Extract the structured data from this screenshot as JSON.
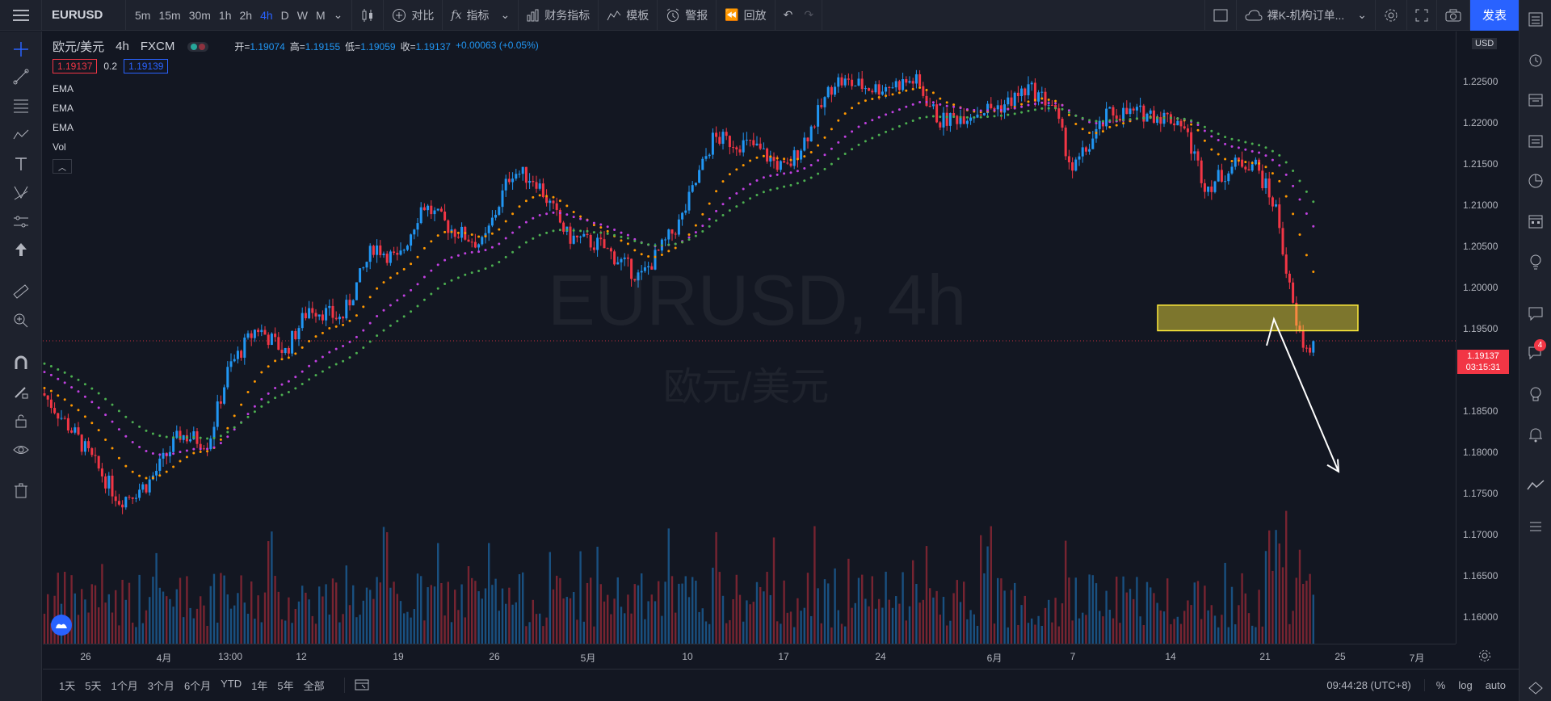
{
  "toolbar": {
    "symbol": "EURUSD",
    "intervals": [
      "5m",
      "15m",
      "30m",
      "1h",
      "2h",
      "4h",
      "D",
      "W",
      "M"
    ],
    "active_interval": "4h",
    "compare_label": "对比",
    "indicators_label": "指标",
    "financials_label": "财务指标",
    "templates_label": "模板",
    "alert_label": "警报",
    "replay_label": "回放",
    "layout_name": "裸K-机构订单...",
    "publish_label": "发表"
  },
  "legend": {
    "title": "欧元/美元",
    "interval": "4h",
    "source": "FXCM",
    "open_label": "开=",
    "open": "1.19074",
    "high_label": "高=",
    "high": "1.19155",
    "low_label": "低=",
    "low": "1.19059",
    "close_label": "收=",
    "close": "1.19137",
    "change": "+0.00063 (+0.05%)",
    "bid": "1.19137",
    "spread": "0.2",
    "ask": "1.19139",
    "indicators": [
      "EMA",
      "EMA",
      "EMA",
      "Vol"
    ]
  },
  "watermark": {
    "symbol": "EURUSD, 4h",
    "name": "欧元/美元"
  },
  "price_axis": {
    "currency": "USD",
    "ticks": [
      "1.22500",
      "1.22000",
      "1.21500",
      "1.21000",
      "1.20500",
      "1.20000",
      "1.19500",
      "1.18500",
      "1.18000",
      "1.17500",
      "1.17000",
      "1.16500",
      "1.16000"
    ],
    "last_price": "1.19137",
    "countdown": "03:15:31"
  },
  "time_axis": {
    "ticks": [
      "26",
      "4月",
      "13:00",
      "12",
      "19",
      "26",
      "5月",
      "10",
      "17",
      "24",
      "6月",
      "7",
      "14",
      "21",
      "25",
      "7月"
    ]
  },
  "bottom": {
    "ranges": [
      "1天",
      "5天",
      "1个月",
      "3个月",
      "6个月",
      "YTD",
      "1年",
      "5年",
      "全部"
    ],
    "time": "09:44:28 (UTC+8)",
    "percent": "%",
    "log": "log",
    "auto": "auto"
  },
  "right_toolbar": {
    "notifications": "4"
  },
  "colors": {
    "up": "#2196f3",
    "down": "#f23645",
    "ema_fast": "#ff9800",
    "ema_mid": "#c040e0",
    "ema_slow": "#4caf50",
    "zone": "#ffeb3b",
    "accent": "#2962ff"
  }
}
